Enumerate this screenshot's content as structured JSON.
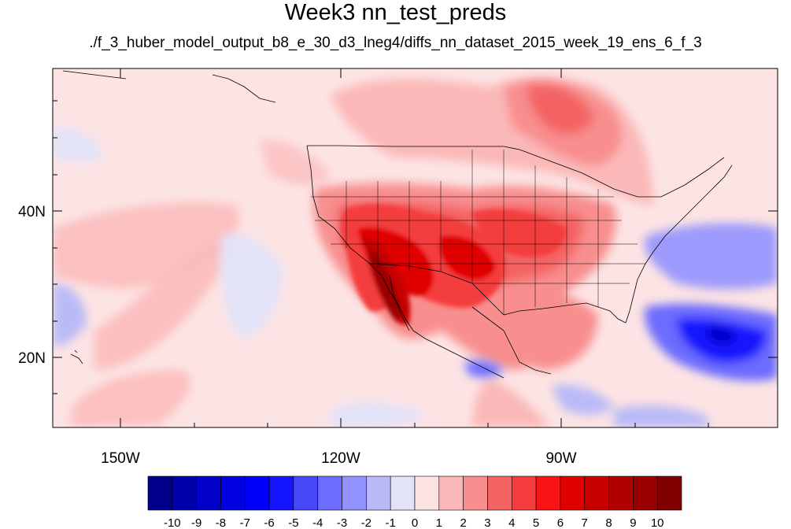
{
  "title": "Week3 nn_test_preds",
  "subtitle": "./f_3_huber_model_output_b8_e_30_d3_lneg4/diffs_nn_dataset_2015_week_19_ens_6_f_3",
  "axes": {
    "lon_labels": [
      "150W",
      "120W",
      "90W"
    ],
    "lat_labels": [
      "40N",
      "20N"
    ]
  },
  "colorbar": {
    "labels": [
      "-10",
      "-9",
      "-8",
      "-7",
      "-6",
      "-5",
      "-4",
      "-3",
      "-2",
      "-1",
      "0",
      "1",
      "2",
      "3",
      "4",
      "5",
      "6",
      "7",
      "8",
      "9",
      "10"
    ],
    "colors": [
      "#00008a",
      "#0000a8",
      "#0000c8",
      "#0000e0",
      "#0000f8",
      "#1414ff",
      "#4848f8",
      "#6c6cff",
      "#9292ff",
      "#babaf8",
      "#e2e2f8",
      "#fde4e4",
      "#fbb8b8",
      "#f88e8e",
      "#f46464",
      "#f43c3c",
      "#f81414",
      "#e00000",
      "#c80000",
      "#b00000",
      "#9a0000",
      "#820000"
    ]
  },
  "map": {
    "background_color": "#fde4e4",
    "region": "North Pacific, North America and Gulf of Mexico"
  }
}
